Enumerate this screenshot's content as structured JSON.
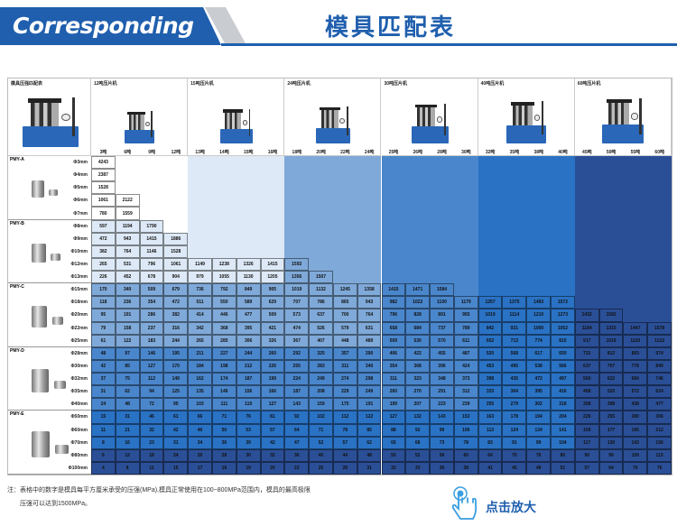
{
  "header": {
    "banner": "Corresponding",
    "title": "模具匹配表"
  },
  "corner_label": "模具压强匹配表",
  "groups": [
    {
      "label": "12吨压片机",
      "tons": [
        "3吨",
        "6吨",
        "9吨",
        "12吨"
      ]
    },
    {
      "label": "15吨压片机",
      "tons": [
        "13吨",
        "14吨",
        "15吨",
        "16吨"
      ]
    },
    {
      "label": "24吨压片机",
      "tons": [
        "18吨",
        "20吨",
        "22吨",
        "24吨"
      ]
    },
    {
      "label": "30吨压片机",
      "tons": [
        "25吨",
        "26吨",
        "28吨",
        "30吨"
      ]
    },
    {
      "label": "40吨压片机",
      "tons": [
        "32吨",
        "35吨",
        "38吨",
        "40吨"
      ]
    },
    {
      "label": "60吨压片机",
      "tons": [
        "45吨",
        "50吨",
        "55吨",
        "60吨"
      ]
    }
  ],
  "colors": {
    "brand": "#1f5fae",
    "levels": [
      "#ffffff",
      "#dde9f6",
      "#7fa9d8",
      "#4a86cb",
      "#2a72c4",
      "#2b4f96"
    ]
  },
  "families": [
    {
      "name": "PMY-A",
      "level": 0,
      "rows": [
        {
          "d": "Φ3mm",
          "v": [
            4243
          ]
        },
        {
          "d": "Φ4mm",
          "v": [
            2387
          ]
        },
        {
          "d": "Φ5mm",
          "v": [
            1528
          ]
        },
        {
          "d": "Φ6mm",
          "v": [
            1061,
            2122
          ]
        },
        {
          "d": "Φ7mm",
          "v": [
            780,
            1559
          ]
        }
      ]
    },
    {
      "name": "PMY-B",
      "level": 1,
      "rows": [
        {
          "d": "Φ8mm",
          "v": [
            597,
            1194,
            1790
          ]
        },
        {
          "d": "Φ9mm",
          "v": [
            472,
            943,
            1415,
            1886
          ]
        },
        {
          "d": "Φ10mm",
          "v": [
            382,
            764,
            1146,
            1528
          ]
        },
        {
          "d": "Φ12mm",
          "v": [
            265,
            531,
            796,
            1061,
            1149,
            1238,
            1326,
            1415,
            1592
          ]
        },
        {
          "d": "Φ13mm",
          "v": [
            226,
            452,
            678,
            904,
            979,
            1055,
            1130,
            1205,
            1356,
            1507
          ]
        }
      ]
    },
    {
      "name": "PMY-C",
      "level": 2,
      "rows": [
        {
          "d": "Φ15mm",
          "v": [
            170,
            340,
            509,
            679,
            736,
            792,
            849,
            905,
            1019,
            1132,
            1245,
            1358,
            1415,
            1471,
            1584
          ]
        },
        {
          "d": "Φ18mm",
          "v": [
            118,
            236,
            354,
            472,
            511,
            550,
            589,
            629,
            707,
            786,
            865,
            943,
            982,
            1022,
            1100,
            1179,
            1257,
            1375,
            1493,
            1572
          ]
        },
        {
          "d": "Φ20mm",
          "v": [
            95,
            191,
            286,
            382,
            414,
            446,
            477,
            509,
            573,
            637,
            700,
            764,
            796,
            828,
            891,
            955,
            1019,
            1114,
            1210,
            1273,
            1432,
            1592
          ]
        },
        {
          "d": "Φ22mm",
          "v": [
            79,
            158,
            237,
            316,
            342,
            368,
            395,
            421,
            474,
            526,
            579,
            631,
            658,
            684,
            737,
            789,
            842,
            921,
            1000,
            1052,
            1184,
            1315,
            1447,
            1578
          ]
        },
        {
          "d": "Φ25mm",
          "v": [
            61,
            122,
            183,
            244,
            265,
            285,
            306,
            326,
            367,
            407,
            448,
            489,
            509,
            530,
            570,
            611,
            652,
            713,
            774,
            815,
            917,
            1019,
            1120,
            1222
          ]
        }
      ]
    },
    {
      "name": "PMY-D",
      "level": 3,
      "rows": [
        {
          "d": "Φ28mm",
          "v": [
            48,
            97,
            146,
            195,
            211,
            227,
            244,
            260,
            292,
            325,
            357,
            390,
            406,
            422,
            455,
            487,
            520,
            568,
            617,
            650,
            731,
            812,
            893,
            974
          ]
        },
        {
          "d": "Φ30mm",
          "v": [
            42,
            85,
            127,
            170,
            184,
            198,
            212,
            226,
            255,
            283,
            311,
            340,
            354,
            368,
            396,
            424,
            453,
            495,
            538,
            566,
            637,
            707,
            778,
            849
          ]
        },
        {
          "d": "Φ32mm",
          "v": [
            37,
            75,
            112,
            149,
            162,
            174,
            187,
            199,
            224,
            249,
            274,
            298,
            311,
            323,
            348,
            373,
            398,
            435,
            472,
            497,
            560,
            622,
            684,
            746
          ]
        },
        {
          "d": "Φ35mm",
          "v": [
            31,
            62,
            94,
            125,
            135,
            146,
            156,
            166,
            187,
            208,
            229,
            249,
            260,
            270,
            291,
            312,
            333,
            364,
            395,
            416,
            468,
            520,
            572,
            624
          ]
        },
        {
          "d": "Φ40mm",
          "v": [
            24,
            48,
            72,
            95,
            103,
            111,
            119,
            127,
            143,
            159,
            175,
            191,
            199,
            207,
            223,
            239,
            255,
            279,
            302,
            318,
            358,
            398,
            438,
            477
          ]
        }
      ]
    },
    {
      "name": "PMY-E",
      "level": 4,
      "rows": [
        {
          "d": "Φ50mm",
          "v": [
            15,
            31,
            46,
            61,
            66,
            71,
            76,
            81,
            92,
            102,
            112,
            122,
            127,
            132,
            143,
            153,
            163,
            178,
            194,
            204,
            229,
            255,
            280,
            306
          ]
        },
        {
          "d": "Φ60mm",
          "v": [
            11,
            21,
            32,
            42,
            46,
            50,
            53,
            57,
            64,
            71,
            78,
            85,
            88,
            92,
            99,
            106,
            113,
            124,
            134,
            141,
            159,
            177,
            195,
            212
          ]
        },
        {
          "d": "Φ70mm",
          "v": [
            8,
            16,
            23,
            31,
            34,
            36,
            39,
            42,
            47,
            52,
            57,
            62,
            65,
            68,
            73,
            78,
            83,
            91,
            99,
            104,
            117,
            130,
            143,
            156
          ]
        },
        {
          "d": "Φ80mm",
          "v": [
            6,
            12,
            18,
            24,
            26,
            28,
            30,
            32,
            36,
            40,
            44,
            48,
            50,
            52,
            56,
            60,
            64,
            70,
            76,
            80,
            90,
            99,
            109,
            119
          ],
          "level": 5
        },
        {
          "d": "Φ100mm",
          "v": [
            4,
            8,
            11,
            15,
            17,
            18,
            19,
            20,
            23,
            25,
            28,
            31,
            32,
            33,
            36,
            38,
            41,
            45,
            48,
            51,
            57,
            64,
            70,
            76
          ],
          "level": 5
        }
      ]
    }
  ],
  "note": {
    "line1": "注：表格中的数字是模具每平方厘米承受的压强(MPa),模具正常使用在100~800MPa范围内，模具的最高极限",
    "line2": "压强可以达到1500MPa。"
  },
  "zoom_hint": {
    "label": "点击放大",
    "icon": "tap-hand-icon"
  }
}
